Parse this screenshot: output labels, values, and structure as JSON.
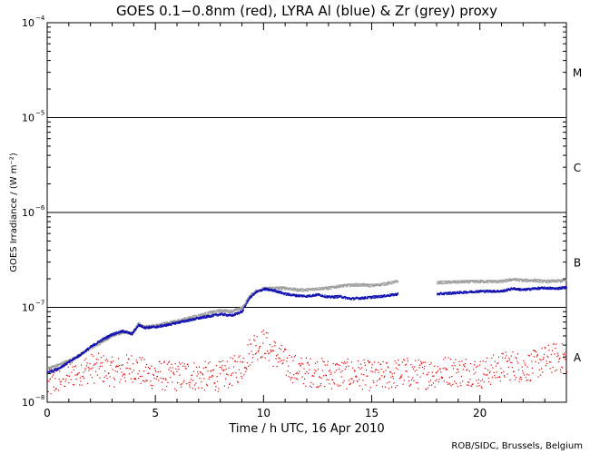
{
  "chart_data": {
    "type": "scatter",
    "title": "GOES 0.1−0.8nm (red), LYRA Al (blue) & Zr (grey) proxy",
    "xlabel": "Time / h UTC, 16 Apr 2010",
    "ylabel": "GOES Irradiance / (W m⁻²)",
    "xlim": [
      0,
      24
    ],
    "ylim": [
      1e-08,
      0.0001
    ],
    "yscale": "log",
    "x_ticks": [
      0,
      5,
      10,
      15,
      20
    ],
    "x_tick_labels": [
      "0",
      "5",
      "10",
      "15",
      "20"
    ],
    "y_ticks": [
      1e-08,
      1e-07,
      1e-06,
      1e-05,
      0.0001
    ],
    "y_tick_labels": [
      {
        "base": "10",
        "exp": "−8"
      },
      {
        "base": "10",
        "exp": "−7"
      },
      {
        "base": "10",
        "exp": "−6"
      },
      {
        "base": "10",
        "exp": "−5"
      },
      {
        "base": "10",
        "exp": "−4"
      }
    ],
    "class_lines": [
      1e-07,
      1e-06,
      1e-05
    ],
    "flare_classes": [
      {
        "label": "A",
        "y": 3e-08
      },
      {
        "label": "B",
        "y": 3e-07
      },
      {
        "label": "C",
        "y": 3e-06
      },
      {
        "label": "M",
        "y": 3e-05
      }
    ],
    "series": [
      {
        "color": "#9e9e9e",
        "x": [
          0,
          0.5,
          1,
          1.5,
          2,
          2.5,
          3,
          3.5,
          3.9,
          4.2,
          4.5,
          5,
          5.5,
          6,
          6.5,
          7,
          7.5,
          8,
          8.5,
          9,
          9.3,
          9.6,
          10,
          10.5,
          11,
          11.5,
          12,
          12.5,
          13,
          13.5,
          14,
          14.5,
          15,
          15.5,
          16.2
        ],
        "y": [
          2.3e-08,
          2.5e-08,
          2.8e-08,
          3.2e-08,
          3.8e-08,
          4.4e-08,
          5.1e-08,
          5.6e-08,
          5.4e-08,
          6.8e-08,
          6.3e-08,
          6.5e-08,
          6.9e-08,
          7.3e-08,
          7.8e-08,
          8.3e-08,
          8.9e-08,
          9.4e-08,
          9.2e-08,
          1e-07,
          1.3e-07,
          1.5e-07,
          1.6e-07,
          1.62e-07,
          1.62e-07,
          1.55e-07,
          1.55e-07,
          1.6e-07,
          1.62e-07,
          1.7e-07,
          1.74e-07,
          1.75e-07,
          1.72e-07,
          1.78e-07,
          1.9e-07
        ],
        "gap": [
          16.2,
          18
        ],
        "x2": [
          18,
          19,
          20,
          21,
          21.5,
          22,
          22.5,
          23,
          23.5,
          24
        ],
        "y2": [
          1.85e-07,
          1.88e-07,
          1.9e-07,
          1.9e-07,
          2e-07,
          1.95e-07,
          1.95e-07,
          1.9e-07,
          1.92e-07,
          1.95e-07
        ]
      },
      {
        "color": "#1010b0",
        "x": [
          0,
          0.5,
          1,
          1.5,
          2,
          2.5,
          3,
          3.5,
          3.9,
          4.2,
          4.5,
          5,
          5.5,
          6,
          6.5,
          7,
          7.5,
          8,
          8.5,
          9,
          9.3,
          9.6,
          10,
          10.5,
          11,
          11.5,
          12,
          12.5,
          13,
          13.5,
          14,
          14.5,
          15,
          15.5,
          16.2
        ],
        "y": [
          2.1e-08,
          2.3e-08,
          2.7e-08,
          3.2e-08,
          3.9e-08,
          4.6e-08,
          5.3e-08,
          5.7e-08,
          5.3e-08,
          6.6e-08,
          6.2e-08,
          6.3e-08,
          6.6e-08,
          7e-08,
          7.4e-08,
          7.8e-08,
          8.2e-08,
          8.6e-08,
          8.3e-08,
          9.2e-08,
          1.25e-07,
          1.45e-07,
          1.58e-07,
          1.52e-07,
          1.4e-07,
          1.35e-07,
          1.33e-07,
          1.38e-07,
          1.3e-07,
          1.32e-07,
          1.25e-07,
          1.27e-07,
          1.3e-07,
          1.33e-07,
          1.4e-07
        ],
        "x2": [
          18,
          19,
          20,
          21,
          21.5,
          22,
          22.5,
          23,
          23.5,
          24
        ],
        "y2": [
          1.4e-07,
          1.45e-07,
          1.5e-07,
          1.5e-07,
          1.6e-07,
          1.55e-07,
          1.6e-07,
          1.62e-07,
          1.6e-07,
          1.65e-07
        ]
      },
      {
        "color": "#e00000",
        "x": [
          0,
          0.5,
          1,
          1.5,
          2,
          2.5,
          3,
          3.5,
          4,
          4.5,
          5,
          5.5,
          6,
          6.5,
          7,
          7.5,
          8,
          8.5,
          9,
          9.5,
          10,
          10.5,
          11,
          11.5,
          12,
          12.5,
          13,
          13.5,
          14,
          14.5,
          15,
          15.5,
          16,
          16.5,
          17,
          17.5,
          18,
          18.5,
          19,
          19.5,
          20,
          20.5,
          21,
          21.5,
          22,
          22.5,
          23,
          23.5,
          24
        ],
        "y": [
          1.5e-08,
          1.8e-08,
          2e-08,
          2.2e-08,
          2.3e-08,
          2.3e-08,
          2.1e-08,
          2.2e-08,
          2.4e-08,
          2e-08,
          2e-08,
          1.9e-08,
          1.9e-08,
          2e-08,
          1.9e-08,
          1.9e-08,
          1.9e-08,
          2.1e-08,
          2.5e-08,
          4e-08,
          4.2e-08,
          3.3e-08,
          2.6e-08,
          2.2e-08,
          2.1e-08,
          2.1e-08,
          2e-08,
          2e-08,
          2e-08,
          2e-08,
          1.9e-08,
          1.9e-08,
          2e-08,
          2.1e-08,
          2e-08,
          2e-08,
          2.1e-08,
          2.2e-08,
          2.1e-08,
          2.2e-08,
          2e-08,
          2.2e-08,
          2.4e-08,
          2.5e-08,
          2.3e-08,
          2.5e-08,
          2.8e-08,
          3e-08,
          2.9e-08
        ]
      }
    ],
    "grid": false
  },
  "credit": "ROB/SIDC, Brussels, Belgium"
}
